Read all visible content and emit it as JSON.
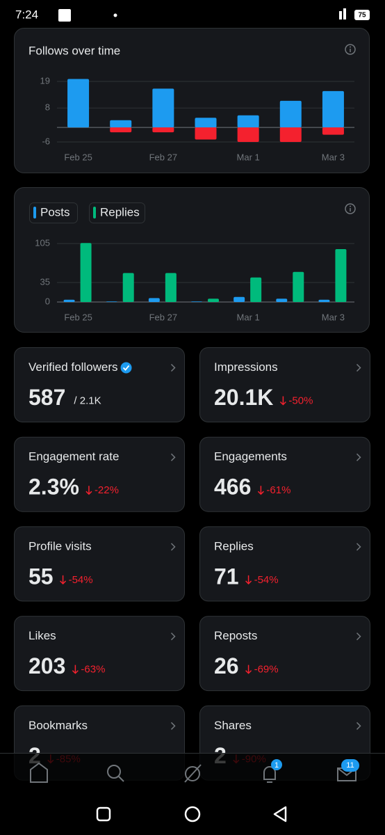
{
  "status_bar": {
    "time": "7:24",
    "battery": "75"
  },
  "follows_chart": {
    "type": "bar",
    "stacked": true,
    "title": "Follows over time",
    "categories": [
      "Feb 25",
      null,
      "Feb 27",
      null,
      "Mar 1",
      null,
      "Mar 3"
    ],
    "series": [
      {
        "color": "#1d9bf0",
        "values": [
          20,
          3,
          16,
          4,
          5,
          11,
          15
        ]
      },
      {
        "color": "#f4212e",
        "values": [
          0,
          -2,
          -2,
          -5,
          -6,
          -6,
          -3
        ]
      }
    ],
    "ylim": [
      -8,
      21
    ],
    "yticks": [
      -6,
      8,
      19
    ],
    "grid": true
  },
  "activity_chart": {
    "type": "bar",
    "stacked": false,
    "categories": [
      "Feb 25",
      null,
      "Feb 27",
      null,
      "Mar 1",
      null,
      "Mar 3"
    ],
    "series": [
      {
        "name": "Posts",
        "color": "#1d9bf0",
        "values": [
          4,
          1,
          7,
          1,
          9,
          6,
          4
        ]
      },
      {
        "name": "Replies",
        "color": "#00ba7c",
        "values": [
          106,
          52,
          52,
          6,
          44,
          54,
          95
        ]
      }
    ],
    "ylim": [
      0,
      110
    ],
    "yticks": [
      0,
      35,
      105
    ],
    "grid": true
  },
  "cards": [
    {
      "label": "Verified followers",
      "value": "587",
      "total": "/ 2.1K"
    },
    {
      "label": "Impressions",
      "value": "20.1K",
      "change": "-50%"
    },
    {
      "label": "Engagement rate",
      "value": "2.3%",
      "change": "-22%"
    },
    {
      "label": "Engagements",
      "value": "466",
      "change": "-61%"
    },
    {
      "label": "Profile visits",
      "value": "55",
      "change": "-54%"
    },
    {
      "label": "Replies",
      "value": "71",
      "change": "-54%"
    },
    {
      "label": "Likes",
      "value": "203",
      "change": "-63%"
    },
    {
      "label": "Reposts",
      "value": "26",
      "change": "-69%"
    },
    {
      "label": "Bookmarks",
      "value": "2",
      "change": "-85%"
    },
    {
      "label": "Shares",
      "value": "2",
      "change": "-90%"
    }
  ],
  "nav_badges": {
    "notifications": "1",
    "messages": "11"
  }
}
